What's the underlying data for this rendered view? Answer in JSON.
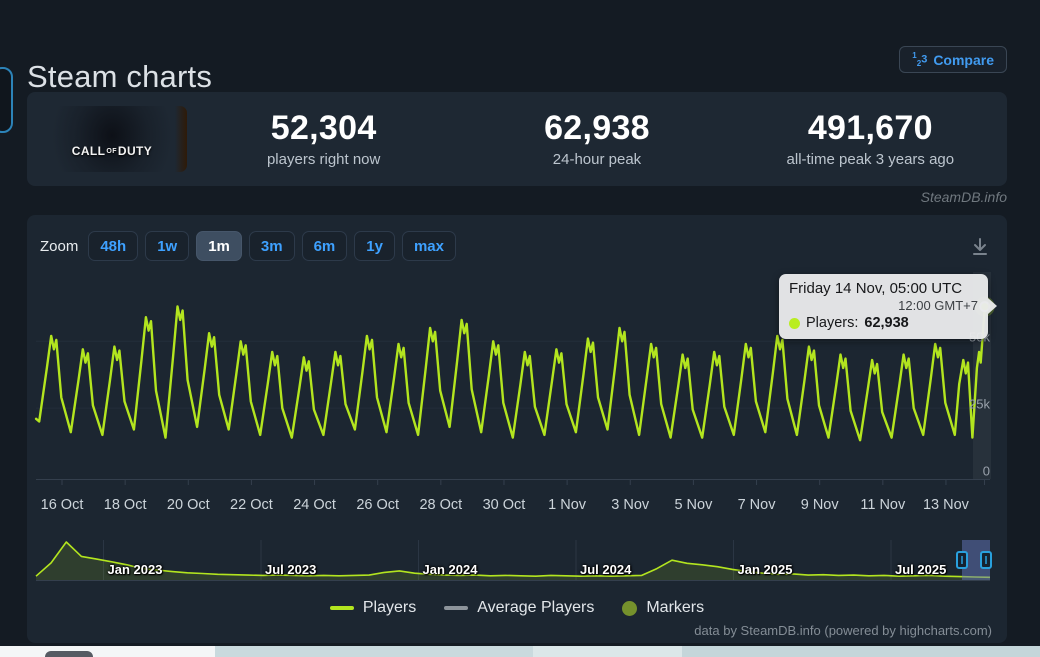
{
  "page": {
    "title": "Steam charts",
    "watermark": "SteamDB.info",
    "credit": "data by SteamDB.info (powered by highcharts.com)"
  },
  "header": {
    "compare_label": "Compare"
  },
  "stats": {
    "capsule_words": [
      "CALL",
      "OF",
      "DUTY"
    ],
    "items": [
      {
        "value": "52,304",
        "label": "players right now"
      },
      {
        "value": "62,938",
        "label": "24-hour peak"
      },
      {
        "value": "491,670",
        "label": "all-time peak 3 years ago"
      }
    ]
  },
  "toolbar": {
    "zoom_label": "Zoom",
    "ranges": [
      "48h",
      "1w",
      "1m",
      "3m",
      "6m",
      "1y",
      "max"
    ],
    "selected": "1m"
  },
  "tooltip": {
    "title": "Friday 14 Nov, 05:00 UTC",
    "subtitle": "12:00 GMT+7",
    "series_label": "Players:",
    "value": "62,938"
  },
  "chart_data": {
    "type": "line",
    "series_name": "Players",
    "line_color": "#b3e51f",
    "x_labels": [
      "16 Oct",
      "18 Oct",
      "20 Oct",
      "22 Oct",
      "24 Oct",
      "26 Oct",
      "28 Oct",
      "30 Oct",
      "1 Nov",
      "3 Nov",
      "5 Nov",
      "7 Nov",
      "9 Nov",
      "11 Nov",
      "13 Nov"
    ],
    "y_ticks": [
      {
        "v": 50,
        "label": "50k"
      },
      {
        "v": 25,
        "label": "25k"
      },
      {
        "v": 0,
        "label": "0"
      }
    ],
    "start_date": "15 Oct",
    "end_point": {
      "date": "Friday 14 Nov, 05:00 UTC",
      "players": 62938
    },
    "daily_peaks_k": [
      52,
      47,
      48,
      59,
      63,
      53,
      50,
      46,
      44,
      46,
      52,
      49,
      55,
      58,
      50,
      46,
      47,
      51,
      55,
      49,
      45,
      46,
      49,
      52,
      48,
      45,
      43,
      45,
      49
    ],
    "daily_troughs_k": [
      20,
      16,
      15,
      17,
      14,
      18,
      17,
      15,
      14,
      15,
      17,
      16,
      15,
      18,
      16,
      14,
      15,
      16,
      17,
      15,
      14,
      14,
      15,
      16,
      15,
      14,
      13,
      14,
      15
    ],
    "tail_points_k": [
      [
        29.28,
        15
      ],
      [
        29.42,
        34
      ],
      [
        29.55,
        43
      ],
      [
        29.63,
        38
      ],
      [
        29.7,
        42
      ],
      [
        29.84,
        14
      ],
      [
        29.98,
        40
      ],
      [
        30.05,
        46
      ],
      [
        30.1,
        42
      ],
      [
        30.23,
        62.938
      ]
    ],
    "navigator": {
      "labels": [
        "Jan 2023",
        "Jul 2023",
        "Jan 2024",
        "Jul 2024",
        "Jan 2025",
        "Jul 2025"
      ],
      "values_norm": [
        0.1,
        0.45,
        1.0,
        0.62,
        0.55,
        0.48,
        0.4,
        0.3,
        0.26,
        0.22,
        0.19,
        0.17,
        0.15,
        0.14,
        0.13,
        0.12,
        0.13,
        0.12,
        0.11,
        0.12,
        0.11,
        0.12,
        0.13,
        0.2,
        0.24,
        0.18,
        0.15,
        0.13,
        0.12,
        0.13,
        0.11,
        0.12,
        0.11,
        0.1,
        0.12,
        0.11,
        0.1,
        0.11,
        0.1,
        0.11,
        0.12,
        0.3,
        0.52,
        0.44,
        0.4,
        0.35,
        0.28,
        0.22,
        0.18,
        0.15,
        0.16,
        0.13,
        0.14,
        0.12,
        0.13,
        0.11,
        0.12,
        0.1,
        0.11,
        0.12,
        0.1,
        0.09,
        0.08,
        0.07
      ],
      "peak_value_players": 491670
    }
  },
  "legend": {
    "items": [
      {
        "label": "Players",
        "swatch": "line",
        "color": "#b3e51f"
      },
      {
        "label": "Average Players",
        "swatch": "line",
        "color": "#8d949b"
      },
      {
        "label": "Markers",
        "swatch": "circle",
        "color": "#75912c"
      }
    ]
  }
}
